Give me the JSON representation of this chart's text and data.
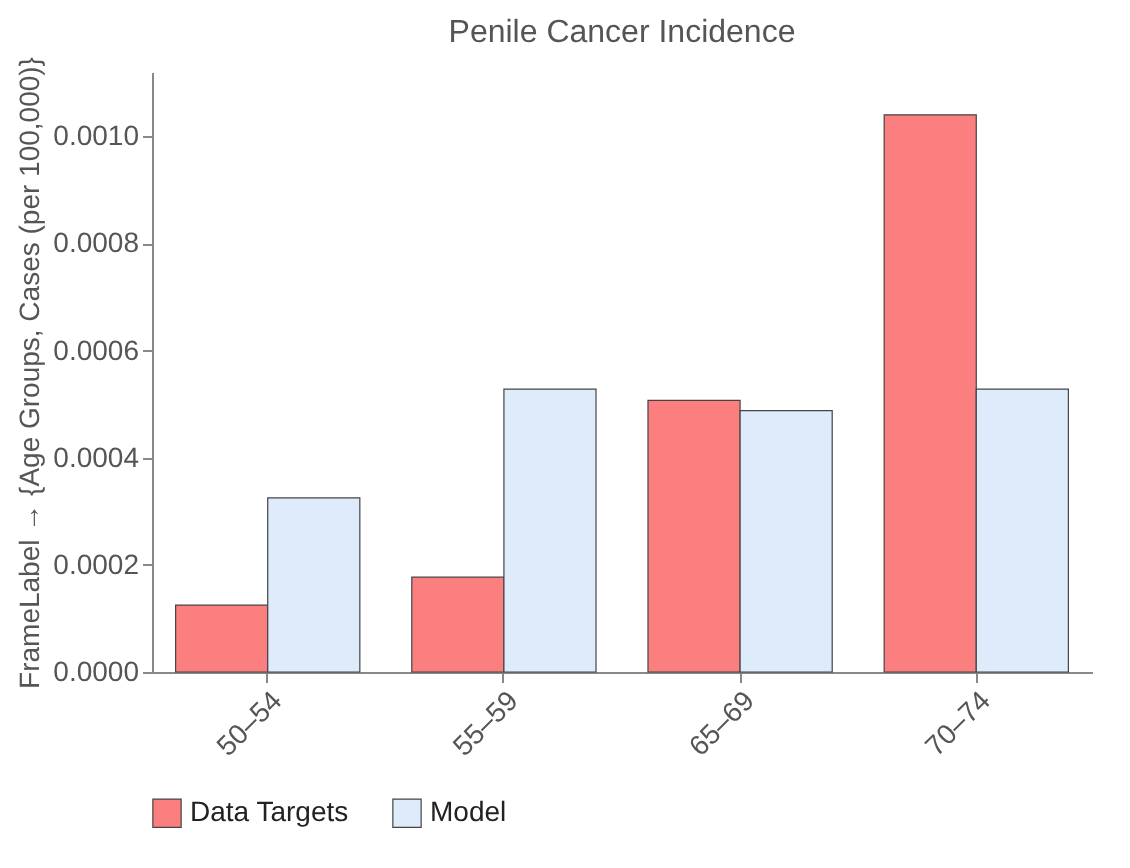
{
  "chart_data": {
    "type": "bar",
    "title": "Penile Cancer Incidence",
    "ylabel": "FrameLabel → {Age Groups, Cases (per 100,000)}",
    "categories": [
      "50–54",
      "55–59",
      "65–69",
      "70–74"
    ],
    "series": [
      {
        "name": "Data Targets",
        "color": "#fc7f7f",
        "values": [
          0.000125,
          0.000177,
          0.000507,
          0.00104
        ]
      },
      {
        "name": "Model",
        "color": "#ddebfb",
        "values": [
          0.000325,
          0.000528,
          0.000488,
          0.000528
        ]
      }
    ],
    "ylim": [
      0,
      0.00112
    ],
    "yticks": [
      {
        "value": 0,
        "label": "0.0000"
      },
      {
        "value": 0.0002,
        "label": "0.0002"
      },
      {
        "value": 0.0004,
        "label": "0.0004"
      },
      {
        "value": 0.0006,
        "label": "0.0006"
      },
      {
        "value": 0.0008,
        "label": "0.0008"
      },
      {
        "value": 0.001,
        "label": "0.0010"
      }
    ],
    "grid": false,
    "legend": "bottom"
  }
}
